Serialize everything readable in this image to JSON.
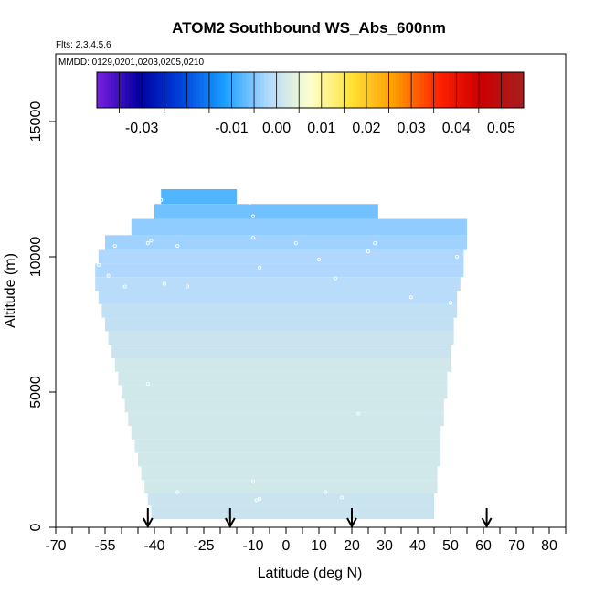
{
  "chart_data": {
    "type": "heatmap",
    "title": "ATOM2 Southbound WS_Abs_600nm",
    "subtitle_flights": "Flts: 2,3,4,5,6",
    "subtitle_dates": "MMDD: 0129,0201,0203,0205,0210",
    "xlabel": "Latitude (deg N)",
    "ylabel": "Altitude (m)",
    "xlim": [
      -70,
      85
    ],
    "ylim": [
      0,
      17500
    ],
    "x_ticks": [
      -70,
      -55,
      -40,
      -25,
      -10,
      0,
      10,
      20,
      30,
      40,
      50,
      60,
      70,
      80
    ],
    "x_tick_labels": [
      "-70",
      "-55",
      "-40",
      "-25",
      "-10",
      "0",
      "10",
      "20",
      "30",
      "40",
      "50",
      "60",
      "70",
      "80"
    ],
    "y_ticks": [
      0,
      5000,
      10000,
      15000
    ],
    "y_tick_labels": [
      "0",
      "5000",
      "10000",
      "15000"
    ],
    "colorbar": {
      "min": -0.04,
      "max": 0.055,
      "ticks": [
        -0.03,
        -0.01,
        0.0,
        0.01,
        0.02,
        0.03,
        0.04,
        0.05
      ],
      "tick_labels": [
        "-0.03",
        "-0.01",
        "0.00",
        "0.01",
        "0.02",
        "0.03",
        "0.04",
        "0.05"
      ],
      "colors": [
        "#7b1fe0",
        "#0000a0",
        "#0044dd",
        "#1aa0ff",
        "#b0d8ff",
        "#ffffcc",
        "#ffe033",
        "#ff9900",
        "#ff2200",
        "#cc0000",
        "#a52020"
      ]
    },
    "region_rows": [
      {
        "alt": 12200,
        "lat_min": -38,
        "lat_max": -15,
        "value": -0.008
      },
      {
        "alt": 11700,
        "lat_min": -40,
        "lat_max": 28,
        "value": -0.006
      },
      {
        "alt": 11100,
        "lat_min": -47,
        "lat_max": 55,
        "value": -0.004
      },
      {
        "alt": 10500,
        "lat_min": -55,
        "lat_max": 55,
        "value": -0.003
      },
      {
        "alt": 10000,
        "lat_min": -57,
        "lat_max": 54,
        "value": -0.002
      },
      {
        "alt": 9500,
        "lat_min": -58,
        "lat_max": 54,
        "value": -0.002
      },
      {
        "alt": 9000,
        "lat_min": -58,
        "lat_max": 53,
        "value": -0.001
      },
      {
        "alt": 8500,
        "lat_min": -57,
        "lat_max": 52,
        "value": -0.001
      },
      {
        "alt": 8000,
        "lat_min": -56,
        "lat_max": 52,
        "value": 0.0
      },
      {
        "alt": 7500,
        "lat_min": -55,
        "lat_max": 51,
        "value": 0.0
      },
      {
        "alt": 7000,
        "lat_min": -54,
        "lat_max": 51,
        "value": 0.001
      },
      {
        "alt": 6500,
        "lat_min": -53,
        "lat_max": 50,
        "value": 0.001
      },
      {
        "alt": 6000,
        "lat_min": -52,
        "lat_max": 50,
        "value": 0.002
      },
      {
        "alt": 5500,
        "lat_min": -51,
        "lat_max": 49,
        "value": 0.002
      },
      {
        "alt": 5000,
        "lat_min": -50,
        "lat_max": 49,
        "value": 0.002
      },
      {
        "alt": 4500,
        "lat_min": -49,
        "lat_max": 48,
        "value": 0.002
      },
      {
        "alt": 4000,
        "lat_min": -48,
        "lat_max": 48,
        "value": 0.002
      },
      {
        "alt": 3500,
        "lat_min": -47,
        "lat_max": 47,
        "value": 0.002
      },
      {
        "alt": 3000,
        "lat_min": -46,
        "lat_max": 47,
        "value": 0.002
      },
      {
        "alt": 2500,
        "lat_min": -45,
        "lat_max": 47,
        "value": 0.002
      },
      {
        "alt": 2000,
        "lat_min": -44,
        "lat_max": 46,
        "value": 0.002
      },
      {
        "alt": 1500,
        "lat_min": -43,
        "lat_max": 46,
        "value": 0.002
      },
      {
        "alt": 1000,
        "lat_min": -42,
        "lat_max": 45,
        "value": 0.001
      },
      {
        "alt": 600,
        "lat_min": -41,
        "lat_max": 45,
        "value": 0.001
      }
    ],
    "profile_arrows_lat": [
      -42,
      -17,
      20,
      61
    ],
    "points": [
      {
        "lat": -38,
        "alt": 12100
      },
      {
        "lat": -11,
        "alt": 12000
      },
      {
        "lat": -10,
        "alt": 11500
      },
      {
        "lat": -10,
        "alt": 10700
      },
      {
        "lat": -42,
        "alt": 10500
      },
      {
        "lat": -41,
        "alt": 10600
      },
      {
        "lat": -33,
        "alt": 10400
      },
      {
        "lat": -52,
        "alt": 10400
      },
      {
        "lat": 3,
        "alt": 10500
      },
      {
        "lat": 25,
        "alt": 10200
      },
      {
        "lat": 27,
        "alt": 10500
      },
      {
        "lat": 52,
        "alt": 10000
      },
      {
        "lat": -57,
        "alt": 9700
      },
      {
        "lat": -8,
        "alt": 9600
      },
      {
        "lat": 10,
        "alt": 9900
      },
      {
        "lat": -54,
        "alt": 9300
      },
      {
        "lat": -37,
        "alt": 9000
      },
      {
        "lat": -30,
        "alt": 8900
      },
      {
        "lat": -49,
        "alt": 8900
      },
      {
        "lat": 15,
        "alt": 9200
      },
      {
        "lat": 38,
        "alt": 8500
      },
      {
        "lat": 50,
        "alt": 8300
      },
      {
        "lat": -56,
        "alt": 7300
      },
      {
        "lat": -42,
        "alt": 5300
      },
      {
        "lat": 22,
        "alt": 4200
      },
      {
        "lat": -10,
        "alt": 1700
      },
      {
        "lat": 12,
        "alt": 1300
      },
      {
        "lat": 17,
        "alt": 1100
      },
      {
        "lat": -33,
        "alt": 1300
      },
      {
        "lat": -9,
        "alt": 1000
      },
      {
        "lat": -8,
        "alt": 1050
      }
    ]
  }
}
